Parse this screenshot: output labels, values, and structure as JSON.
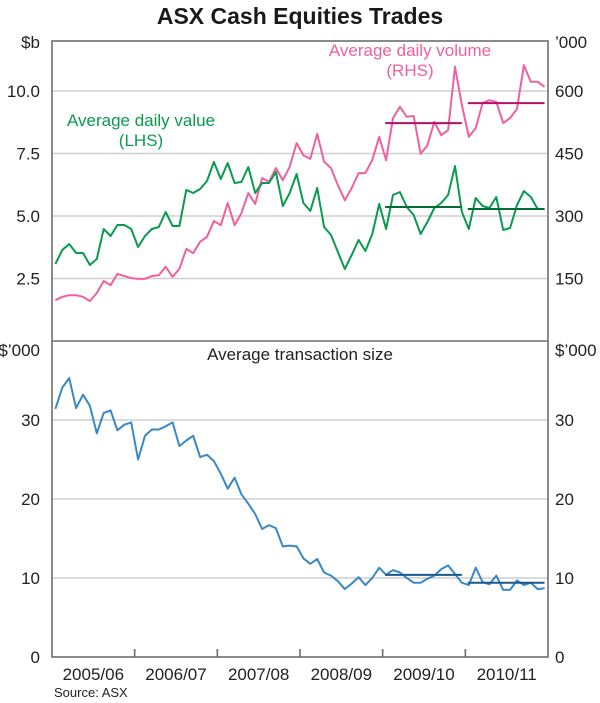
{
  "chart_data": [
    {
      "type": "line",
      "panel": "top",
      "title": "ASX Cash Equities Trades",
      "left_axis": {
        "unit": "$b",
        "ticks": [
          "2.5",
          "5.0",
          "7.5",
          "10.0"
        ],
        "tick_values": [
          2.5,
          5.0,
          7.5,
          10.0
        ],
        "range": [
          0,
          12
        ]
      },
      "right_axis": {
        "unit": "’000",
        "ticks": [
          "150",
          "300",
          "450",
          "600"
        ],
        "tick_values": [
          150,
          300,
          450,
          600
        ],
        "range": [
          0,
          720
        ]
      },
      "grid": true,
      "x": {
        "start": "Jul 2005",
        "end": "Jun 2011",
        "frequency": "monthly",
        "count": 72
      },
      "series": [
        {
          "name": "Average daily value",
          "axis": "left",
          "label": "Average daily value",
          "label2": "(LHS)",
          "color": "#0a9a50",
          "values": [
            3.08,
            3.64,
            3.88,
            3.52,
            3.52,
            3.04,
            3.28,
            4.48,
            4.2,
            4.64,
            4.64,
            4.48,
            3.76,
            4.2,
            4.48,
            4.56,
            5.16,
            4.6,
            4.6,
            6.04,
            5.92,
            6.08,
            6.4,
            7.16,
            6.48,
            7.12,
            6.32,
            6.36,
            6.96,
            5.92,
            6.32,
            6.32,
            6.76,
            5.4,
            5.92,
            6.68,
            5.52,
            5.2,
            6.12,
            4.56,
            4.24,
            3.56,
            2.88,
            3.44,
            4.04,
            3.6,
            4.28,
            5.48,
            4.48,
            5.84,
            5.96,
            5.36,
            5.04,
            4.28,
            4.76,
            5.32,
            5.52,
            5.84,
            7.0,
            5.16,
            4.48,
            5.72,
            5.4,
            5.32,
            5.76,
            4.44,
            4.52,
            5.44,
            6.0,
            5.76,
            5.28,
            5.28
          ],
          "averages": [
            {
              "from_index": 48,
              "to_index": 59,
              "value": 5.36
            },
            {
              "from_index": 60,
              "to_index": 71,
              "value": 5.28
            }
          ],
          "average_color": "#006b37"
        },
        {
          "name": "Average daily volume",
          "axis": "right",
          "label": "Average daily volume",
          "label2": "(RHS)",
          "color": "#f0609f",
          "values": [
            98,
            106,
            110,
            110,
            106,
            96,
            115,
            144,
            134,
            161,
            156,
            151,
            149,
            149,
            156,
            158,
            178,
            154,
            173,
            221,
            211,
            238,
            250,
            288,
            278,
            331,
            278,
            307,
            355,
            329,
            391,
            382,
            415,
            386,
            418,
            475,
            446,
            437,
            497,
            430,
            415,
            374,
            338,
            367,
            403,
            403,
            435,
            490,
            434,
            535,
            562,
            538,
            540,
            449,
            470,
            526,
            494,
            506,
            658,
            566,
            490,
            511,
            571,
            578,
            574,
            523,
            535,
            557,
            662,
            622,
            622,
            610
          ],
          "averages": [
            {
              "from_index": 48,
              "to_index": 59,
              "value": 523
            },
            {
              "from_index": 60,
              "to_index": 71,
              "value": 571
            }
          ],
          "average_color": "#b0106a"
        }
      ]
    },
    {
      "type": "line",
      "panel": "bottom",
      "title": "Average transaction size",
      "left_axis": {
        "unit": "$’000",
        "ticks": [
          "0",
          "10",
          "20",
          "30"
        ],
        "tick_values": [
          0,
          10,
          20,
          30
        ],
        "range": [
          0,
          40
        ]
      },
      "right_axis": {
        "unit": "$’000",
        "ticks": [
          "0",
          "10",
          "20",
          "30"
        ],
        "tick_values": [
          0,
          10,
          20,
          30
        ],
        "range": [
          0,
          40
        ]
      },
      "grid": true,
      "x_tick_labels": [
        "2005/06",
        "2006/07",
        "2007/08",
        "2008/09",
        "2009/10",
        "2010/11"
      ],
      "series": [
        {
          "name": "Average transaction size",
          "color": "#3a88c8",
          "values": [
            31.4,
            34.1,
            35.3,
            31.5,
            33.2,
            31.8,
            28.3,
            30.9,
            31.2,
            28.7,
            29.4,
            29.7,
            25.0,
            28.0,
            28.8,
            28.8,
            29.2,
            29.7,
            26.7,
            27.4,
            28.0,
            25.3,
            25.6,
            24.8,
            23.2,
            21.3,
            22.7,
            20.6,
            19.4,
            18.1,
            16.2,
            16.7,
            16.3,
            14.0,
            14.1,
            14.0,
            12.5,
            11.8,
            12.4,
            10.7,
            10.3,
            9.6,
            8.6,
            9.3,
            10.1,
            9.1,
            10.0,
            11.3,
            10.4,
            11.0,
            10.7,
            10.0,
            9.4,
            9.4,
            9.9,
            10.3,
            11.1,
            11.6,
            10.5,
            9.4,
            9.1,
            11.3,
            9.5,
            9.2,
            10.3,
            8.5,
            8.5,
            9.7,
            9.1,
            9.4,
            8.6,
            8.7
          ],
          "averages": [
            {
              "from_index": 48,
              "to_index": 59,
              "value": 10.4
            },
            {
              "from_index": 60,
              "to_index": 71,
              "value": 9.4
            }
          ],
          "average_color": "#1a5a8a"
        }
      ]
    }
  ],
  "source": "Source: ASX"
}
